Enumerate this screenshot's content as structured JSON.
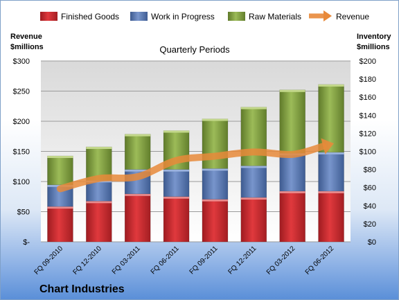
{
  "chart_data": {
    "type": "bar",
    "title": "Quarterly Periods",
    "company": "Chart Industries",
    "left_axis_label": [
      "Revenue",
      "$millions"
    ],
    "right_axis_label": [
      "Inventory",
      "$millions"
    ],
    "categories": [
      "FQ 09-2010",
      "FQ 12-2010",
      "FQ 03-2011",
      "FQ 06-2011",
      "FQ 09-2011",
      "FQ 12-2011",
      "FQ 03-2012",
      "FQ 06-2012"
    ],
    "left_ylim": [
      0,
      300
    ],
    "right_ylim": [
      0,
      200
    ],
    "left_ticks": [
      "$-",
      "$50",
      "$100",
      "$150",
      "$200",
      "$250",
      "$300"
    ],
    "right_ticks": [
      "$0",
      "$20",
      "$40",
      "$60",
      "$80",
      "$100",
      "$120",
      "$140",
      "$160",
      "$180",
      "$200"
    ],
    "stacked": true,
    "series": [
      {
        "name": "Finished Goods",
        "axis": "right",
        "color": "#c0282d",
        "values": [
          39,
          45,
          53,
          50,
          47,
          49,
          56,
          56
        ]
      },
      {
        "name": "Work in Progress",
        "axis": "right",
        "color": "#4f6fa8",
        "values": [
          24,
          23,
          27,
          30,
          34,
          35,
          42,
          43
        ]
      },
      {
        "name": "Raw Materials",
        "axis": "right",
        "color": "#77943a",
        "values": [
          32,
          37,
          39,
          43,
          55,
          65,
          70,
          75
        ]
      },
      {
        "name": "Revenue",
        "axis": "left",
        "type": "line",
        "color": "#e8893a",
        "values": [
          88,
          105,
          108,
          135,
          142,
          149,
          145,
          162
        ]
      }
    ],
    "legend_position": "top",
    "grid": true
  }
}
